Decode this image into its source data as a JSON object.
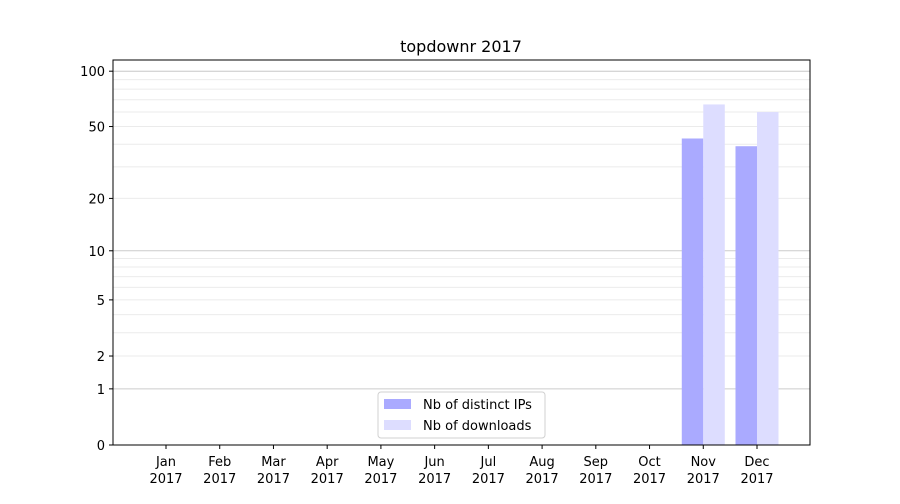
{
  "chart_data": {
    "type": "bar",
    "title": "topdownr 2017",
    "xlabel": "",
    "ylabel": "",
    "yscale": "symlog",
    "ylim": [
      0,
      110
    ],
    "yticks": [
      0,
      1,
      2,
      5,
      10,
      20,
      50,
      100
    ],
    "grid": true,
    "legend_position": "bottom-center",
    "categories": [
      "Jan\n2017",
      "Feb\n2017",
      "Mar\n2017",
      "Apr\n2017",
      "May\n2017",
      "Jun\n2017",
      "Jul\n2017",
      "Aug\n2017",
      "Sep\n2017",
      "Oct\n2017",
      "Nov\n2017",
      "Dec\n2017"
    ],
    "series": [
      {
        "name": "Nb of distinct IPs",
        "color": "#aaaaff",
        "values": [
          0,
          0,
          0,
          0,
          0,
          0,
          0,
          0,
          0,
          0,
          43,
          39
        ]
      },
      {
        "name": "Nb of downloads",
        "color": "#ddddff",
        "values": [
          0,
          0,
          0,
          0,
          0,
          0,
          0,
          0,
          0,
          0,
          66,
          60
        ]
      }
    ]
  }
}
